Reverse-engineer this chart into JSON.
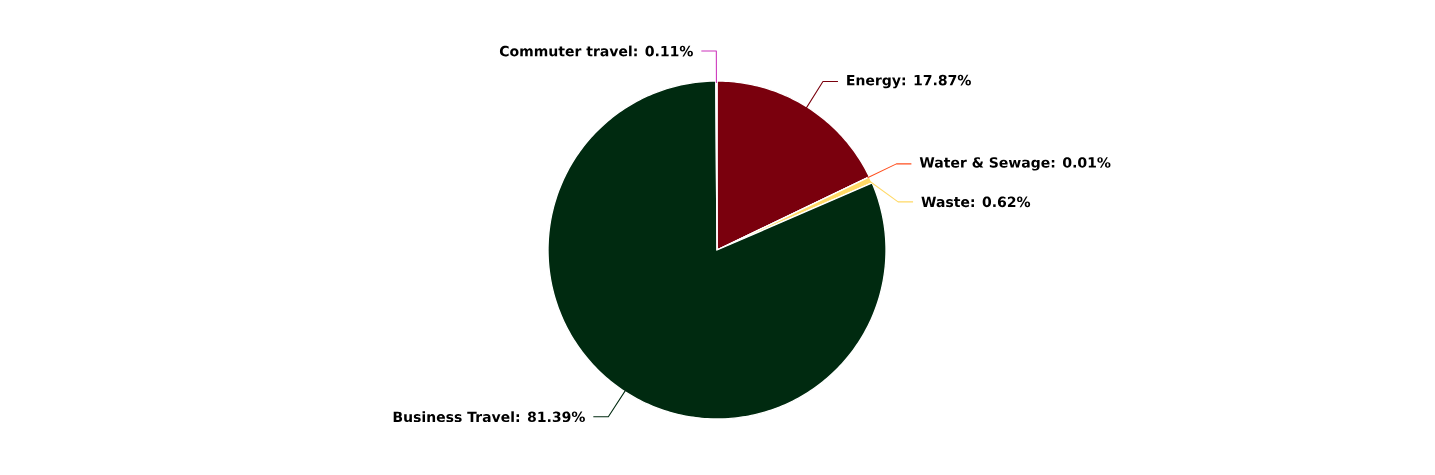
{
  "chart_data": {
    "type": "pie",
    "categories": [
      "Energy",
      "Water & Sewage",
      "Waste",
      "Business Travel",
      "Commuter travel"
    ],
    "values": [
      17.87,
      0.01,
      0.62,
      81.39,
      0.11
    ],
    "value_labels": [
      ": 17.87%",
      ": 0.01%",
      ": 0.62%",
      ": 81.39%",
      ": 0.11%"
    ],
    "colors": [
      "#7a000d",
      "#ff4f1f",
      "#ffd966",
      "#002a10",
      "#cc33bb"
    ]
  }
}
